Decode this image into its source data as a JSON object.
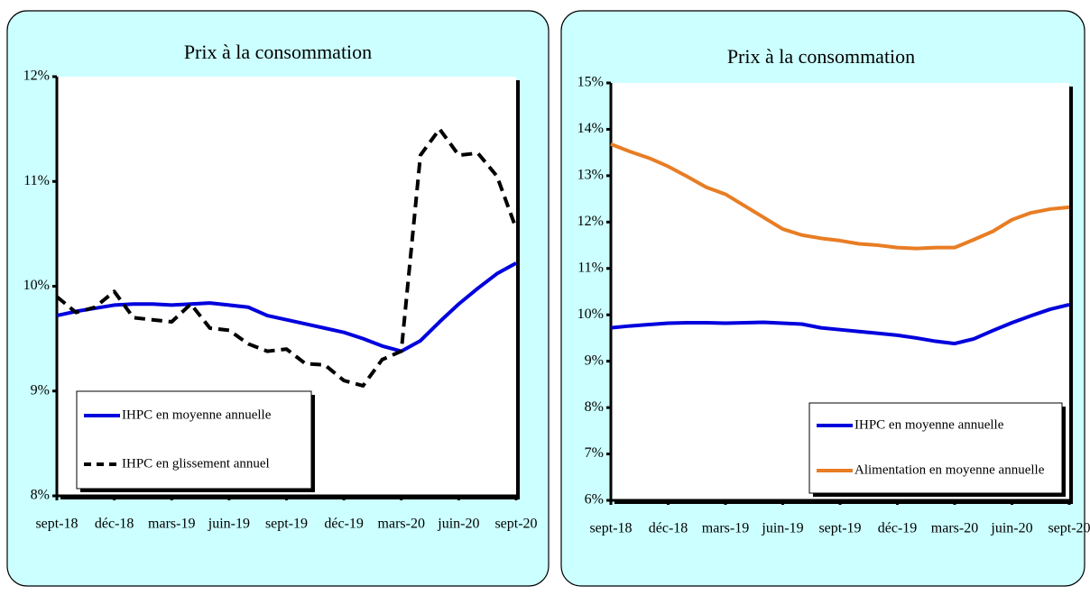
{
  "chart_data": [
    {
      "type": "line",
      "title": "Prix à la consommation",
      "categories": [
        "sept-18",
        null,
        null,
        "déc-18",
        null,
        null,
        "mars-19",
        null,
        null,
        "juin-19",
        null,
        null,
        "sept-19",
        null,
        null,
        "déc-19",
        null,
        null,
        "mars-20",
        null,
        null,
        "juin-20",
        null,
        null,
        "sept-20"
      ],
      "series": [
        {
          "name": "IHPC en moyenne annuelle",
          "color": "#0000dd",
          "line_style": "solid",
          "values": [
            9.72,
            9.76,
            9.79,
            9.82,
            9.83,
            9.83,
            9.82,
            9.83,
            9.84,
            9.82,
            9.8,
            9.72,
            9.68,
            9.64,
            9.6,
            9.56,
            9.5,
            9.43,
            9.38,
            9.48,
            9.66,
            9.83,
            9.98,
            10.12,
            10.22
          ]
        },
        {
          "name": "IHPC en glissement annuel",
          "color": "#000000",
          "line_style": "dashed",
          "values": [
            9.9,
            9.75,
            9.8,
            9.95,
            9.7,
            9.68,
            9.66,
            9.83,
            9.6,
            9.58,
            9.45,
            9.38,
            9.4,
            9.26,
            9.25,
            9.1,
            9.05,
            9.3,
            9.38,
            11.25,
            11.5,
            11.25,
            11.27,
            11.05,
            10.55
          ]
        }
      ],
      "ylim": [
        8,
        12
      ],
      "yticks": [
        {
          "value": 8,
          "label": "8%"
        },
        {
          "value": 9,
          "label": "9%"
        },
        {
          "value": 10,
          "label": "10%"
        },
        {
          "value": 11,
          "label": "11%"
        },
        {
          "value": 12,
          "label": "12%"
        }
      ],
      "legend": "lower left"
    },
    {
      "type": "line",
      "title": "Prix à la consommation",
      "categories": [
        "sept-18",
        null,
        null,
        "déc-18",
        null,
        null,
        "mars-19",
        null,
        null,
        "juin-19",
        null,
        null,
        "sept-19",
        null,
        null,
        "déc-19",
        null,
        null,
        "mars-20",
        null,
        null,
        "juin-20",
        null,
        null,
        "sept-20"
      ],
      "series": [
        {
          "name": "IHPC en moyenne annuelle",
          "color": "#0000dd",
          "line_style": "solid",
          "values": [
            9.72,
            9.76,
            9.79,
            9.82,
            9.83,
            9.83,
            9.82,
            9.83,
            9.84,
            9.82,
            9.8,
            9.72,
            9.68,
            9.64,
            9.6,
            9.56,
            9.5,
            9.43,
            9.38,
            9.48,
            9.66,
            9.83,
            9.98,
            10.12,
            10.22
          ]
        },
        {
          "name": "Alimentation en moyenne annuelle",
          "color": "#e87d24",
          "line_style": "solid",
          "values": [
            13.68,
            13.52,
            13.38,
            13.2,
            12.98,
            12.75,
            12.6,
            12.35,
            12.1,
            11.85,
            11.72,
            11.65,
            11.6,
            11.53,
            11.5,
            11.45,
            11.43,
            11.45,
            11.45,
            11.62,
            11.8,
            12.05,
            12.2,
            12.28,
            12.32
          ]
        }
      ],
      "ylim": [
        6,
        15
      ],
      "yticks": [
        {
          "value": 6,
          "label": "6%"
        },
        {
          "value": 7,
          "label": "7%"
        },
        {
          "value": 8,
          "label": "8%"
        },
        {
          "value": 9,
          "label": "9%"
        },
        {
          "value": 10,
          "label": "10%"
        },
        {
          "value": 11,
          "label": "11%"
        },
        {
          "value": 12,
          "label": "12%"
        },
        {
          "value": 13,
          "label": "13%"
        },
        {
          "value": 14,
          "label": "14%"
        },
        {
          "value": 15,
          "label": "15%"
        }
      ],
      "legend": "lower right"
    }
  ]
}
